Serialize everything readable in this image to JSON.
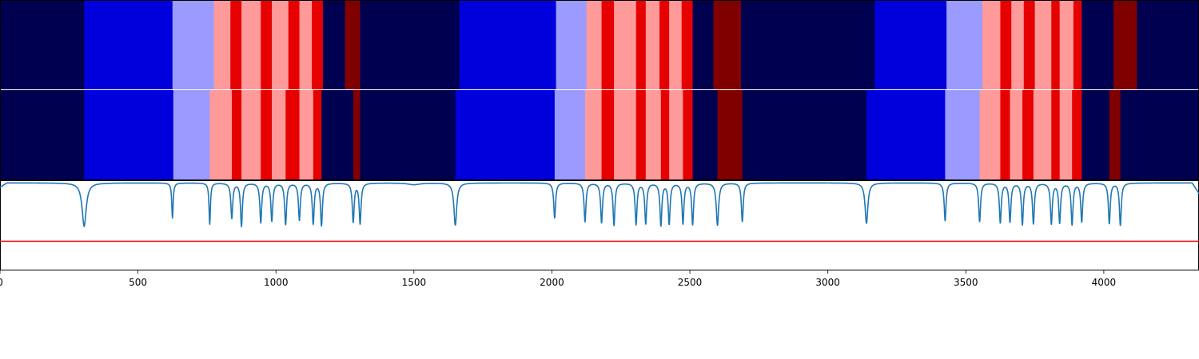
{
  "chart_data": [
    {
      "type": "heatmap",
      "name": "top-segmentation-strip",
      "colors": {
        "0": "#000050",
        "1": "#0000dc",
        "2": "#9a9aff",
        "3": "#ff9a9a",
        "4": "#e60000",
        "5": "#800000"
      },
      "segments": [
        {
          "start": 0,
          "end": 305,
          "class": 0
        },
        {
          "start": 305,
          "end": 625,
          "class": 1
        },
        {
          "start": 625,
          "end": 775,
          "class": 2
        },
        {
          "start": 775,
          "end": 835,
          "class": 3
        },
        {
          "start": 835,
          "end": 875,
          "class": 4
        },
        {
          "start": 875,
          "end": 945,
          "class": 3
        },
        {
          "start": 945,
          "end": 985,
          "class": 4
        },
        {
          "start": 985,
          "end": 1045,
          "class": 3
        },
        {
          "start": 1045,
          "end": 1085,
          "class": 4
        },
        {
          "start": 1085,
          "end": 1130,
          "class": 3
        },
        {
          "start": 1130,
          "end": 1170,
          "class": 4
        },
        {
          "start": 1170,
          "end": 1250,
          "class": 0
        },
        {
          "start": 1250,
          "end": 1305,
          "class": 5
        },
        {
          "start": 1305,
          "end": 1665,
          "class": 0
        },
        {
          "start": 1665,
          "end": 2015,
          "class": 1
        },
        {
          "start": 2015,
          "end": 2125,
          "class": 2
        },
        {
          "start": 2125,
          "end": 2180,
          "class": 3
        },
        {
          "start": 2180,
          "end": 2225,
          "class": 4
        },
        {
          "start": 2225,
          "end": 2305,
          "class": 3
        },
        {
          "start": 2305,
          "end": 2340,
          "class": 4
        },
        {
          "start": 2340,
          "end": 2390,
          "class": 3
        },
        {
          "start": 2390,
          "end": 2425,
          "class": 4
        },
        {
          "start": 2425,
          "end": 2470,
          "class": 3
        },
        {
          "start": 2470,
          "end": 2510,
          "class": 4
        },
        {
          "start": 2510,
          "end": 2585,
          "class": 0
        },
        {
          "start": 2585,
          "end": 2685,
          "class": 5
        },
        {
          "start": 2685,
          "end": 3170,
          "class": 0
        },
        {
          "start": 3170,
          "end": 3430,
          "class": 1
        },
        {
          "start": 3430,
          "end": 3560,
          "class": 2
        },
        {
          "start": 3560,
          "end": 3625,
          "class": 3
        },
        {
          "start": 3625,
          "end": 3665,
          "class": 4
        },
        {
          "start": 3665,
          "end": 3710,
          "class": 3
        },
        {
          "start": 3710,
          "end": 3750,
          "class": 4
        },
        {
          "start": 3750,
          "end": 3810,
          "class": 3
        },
        {
          "start": 3810,
          "end": 3840,
          "class": 4
        },
        {
          "start": 3840,
          "end": 3890,
          "class": 3
        },
        {
          "start": 3890,
          "end": 3920,
          "class": 4
        },
        {
          "start": 3920,
          "end": 4035,
          "class": 0
        },
        {
          "start": 4035,
          "end": 4120,
          "class": 5
        },
        {
          "start": 4120,
          "end": 4345,
          "class": 0
        }
      ]
    },
    {
      "type": "heatmap",
      "name": "bottom-segmentation-strip",
      "segments": [
        {
          "start": 0,
          "end": 305,
          "class": 0
        },
        {
          "start": 305,
          "end": 628,
          "class": 1
        },
        {
          "start": 628,
          "end": 760,
          "class": 2
        },
        {
          "start": 760,
          "end": 840,
          "class": 3
        },
        {
          "start": 840,
          "end": 875,
          "class": 4
        },
        {
          "start": 875,
          "end": 945,
          "class": 3
        },
        {
          "start": 945,
          "end": 985,
          "class": 4
        },
        {
          "start": 985,
          "end": 1035,
          "class": 3
        },
        {
          "start": 1035,
          "end": 1085,
          "class": 4
        },
        {
          "start": 1085,
          "end": 1135,
          "class": 3
        },
        {
          "start": 1135,
          "end": 1165,
          "class": 4
        },
        {
          "start": 1165,
          "end": 1280,
          "class": 0
        },
        {
          "start": 1280,
          "end": 1305,
          "class": 5
        },
        {
          "start": 1305,
          "end": 1650,
          "class": 0
        },
        {
          "start": 1650,
          "end": 2010,
          "class": 1
        },
        {
          "start": 2010,
          "end": 2120,
          "class": 2
        },
        {
          "start": 2120,
          "end": 2180,
          "class": 3
        },
        {
          "start": 2180,
          "end": 2225,
          "class": 4
        },
        {
          "start": 2225,
          "end": 2305,
          "class": 3
        },
        {
          "start": 2305,
          "end": 2340,
          "class": 4
        },
        {
          "start": 2340,
          "end": 2395,
          "class": 3
        },
        {
          "start": 2395,
          "end": 2425,
          "class": 4
        },
        {
          "start": 2425,
          "end": 2475,
          "class": 3
        },
        {
          "start": 2475,
          "end": 2510,
          "class": 4
        },
        {
          "start": 2510,
          "end": 2600,
          "class": 0
        },
        {
          "start": 2600,
          "end": 2690,
          "class": 5
        },
        {
          "start": 2690,
          "end": 3140,
          "class": 0
        },
        {
          "start": 3140,
          "end": 3425,
          "class": 1
        },
        {
          "start": 3425,
          "end": 3550,
          "class": 2
        },
        {
          "start": 3550,
          "end": 3625,
          "class": 3
        },
        {
          "start": 3625,
          "end": 3660,
          "class": 4
        },
        {
          "start": 3660,
          "end": 3705,
          "class": 3
        },
        {
          "start": 3705,
          "end": 3745,
          "class": 4
        },
        {
          "start": 3745,
          "end": 3810,
          "class": 3
        },
        {
          "start": 3810,
          "end": 3840,
          "class": 4
        },
        {
          "start": 3840,
          "end": 3885,
          "class": 3
        },
        {
          "start": 3885,
          "end": 3920,
          "class": 4
        },
        {
          "start": 3920,
          "end": 4020,
          "class": 0
        },
        {
          "start": 4020,
          "end": 4060,
          "class": 5
        },
        {
          "start": 4060,
          "end": 4345,
          "class": 0
        }
      ]
    },
    {
      "type": "line",
      "name": "probability-panel",
      "xlim": [
        0,
        4345
      ],
      "ylim": [
        0,
        1
      ],
      "x_ticks": [
        0,
        500,
        1000,
        1500,
        2000,
        2500,
        3000,
        3500,
        4000
      ],
      "x_tick_labels": [
        "0",
        "500",
        "1000",
        "1500",
        "2000",
        "2500",
        "3000",
        "3500",
        "4000"
      ],
      "series": [
        {
          "color": "#1f77b4",
          "baseline": 0.98,
          "dips": [
            {
              "x": 305,
              "y": 0.49,
              "w": 9
            },
            {
              "x": 625,
              "y": 0.58,
              "w": 3
            },
            {
              "x": 760,
              "y": 0.51,
              "w": 3
            },
            {
              "x": 840,
              "y": 0.58,
              "w": 4
            },
            {
              "x": 875,
              "y": 0.49,
              "w": 4
            },
            {
              "x": 945,
              "y": 0.53,
              "w": 4
            },
            {
              "x": 985,
              "y": 0.55,
              "w": 4
            },
            {
              "x": 1035,
              "y": 0.51,
              "w": 4
            },
            {
              "x": 1085,
              "y": 0.56,
              "w": 4
            },
            {
              "x": 1135,
              "y": 0.52,
              "w": 4
            },
            {
              "x": 1165,
              "y": 0.5,
              "w": 4
            },
            {
              "x": 1280,
              "y": 0.54,
              "w": 4
            },
            {
              "x": 1305,
              "y": 0.52,
              "w": 4
            },
            {
              "x": 1500,
              "y": 0.96,
              "w": 25
            },
            {
              "x": 1650,
              "y": 0.5,
              "w": 6
            },
            {
              "x": 2010,
              "y": 0.58,
              "w": 4
            },
            {
              "x": 2120,
              "y": 0.54,
              "w": 4
            },
            {
              "x": 2180,
              "y": 0.53,
              "w": 4
            },
            {
              "x": 2225,
              "y": 0.5,
              "w": 4
            },
            {
              "x": 2305,
              "y": 0.51,
              "w": 4
            },
            {
              "x": 2340,
              "y": 0.52,
              "w": 4
            },
            {
              "x": 2395,
              "y": 0.5,
              "w": 4
            },
            {
              "x": 2425,
              "y": 0.52,
              "w": 4
            },
            {
              "x": 2475,
              "y": 0.52,
              "w": 4
            },
            {
              "x": 2510,
              "y": 0.51,
              "w": 4
            },
            {
              "x": 2600,
              "y": 0.5,
              "w": 5
            },
            {
              "x": 2690,
              "y": 0.54,
              "w": 4
            },
            {
              "x": 3140,
              "y": 0.52,
              "w": 6
            },
            {
              "x": 3425,
              "y": 0.55,
              "w": 4
            },
            {
              "x": 3550,
              "y": 0.54,
              "w": 4
            },
            {
              "x": 3625,
              "y": 0.53,
              "w": 4
            },
            {
              "x": 3660,
              "y": 0.54,
              "w": 4
            },
            {
              "x": 3705,
              "y": 0.51,
              "w": 4
            },
            {
              "x": 3745,
              "y": 0.52,
              "w": 4
            },
            {
              "x": 3810,
              "y": 0.52,
              "w": 4
            },
            {
              "x": 3840,
              "y": 0.53,
              "w": 4
            },
            {
              "x": 3885,
              "y": 0.51,
              "w": 4
            },
            {
              "x": 3920,
              "y": 0.54,
              "w": 4
            },
            {
              "x": 4020,
              "y": 0.52,
              "w": 4
            },
            {
              "x": 4060,
              "y": 0.5,
              "w": 4
            }
          ]
        },
        {
          "color": "#e41a1c",
          "values": [
            0.32,
            0.32
          ]
        }
      ]
    }
  ]
}
